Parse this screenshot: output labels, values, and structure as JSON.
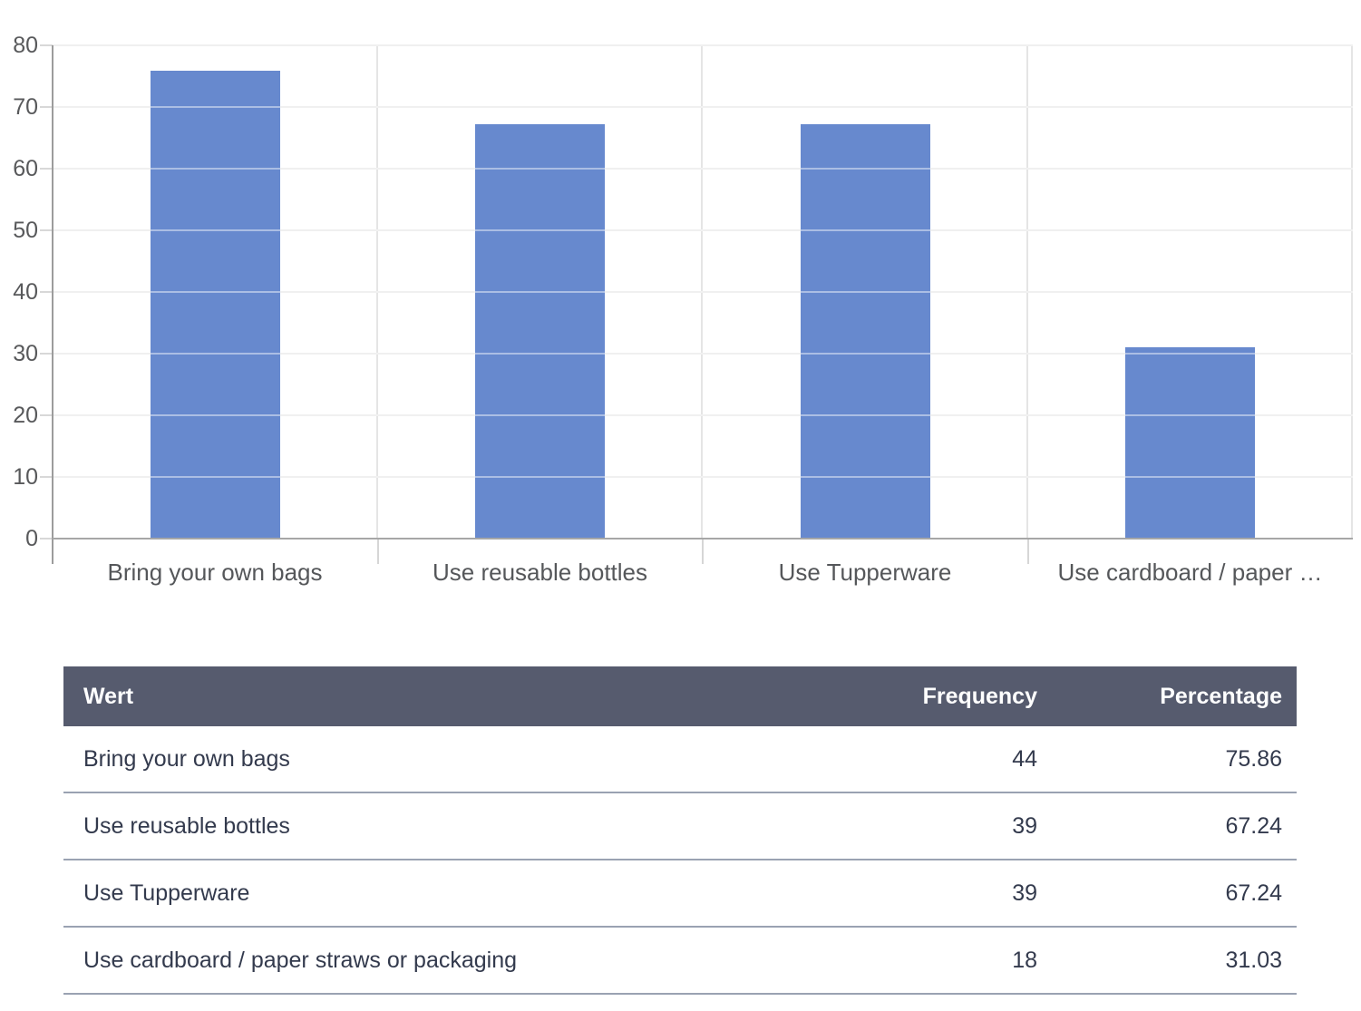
{
  "chart_data": {
    "type": "bar",
    "categories": [
      "Bring your own bags",
      "Use reusable bottles",
      "Use Tupperware",
      "Use cardboard / paper …"
    ],
    "values": [
      75.86,
      67.24,
      67.24,
      31.03
    ],
    "series_name": "Percentage",
    "title": "",
    "xlabel": "",
    "ylabel": "",
    "ylim": [
      0,
      80
    ],
    "ytick_step": 10,
    "yticks": [
      0,
      10,
      20,
      30,
      40,
      50,
      60,
      70,
      80
    ],
    "grid": true,
    "legend_position": "none",
    "bar_color": "#6789ce",
    "axis_text_color": "#58595b",
    "gridline_color": "#e3e3e3",
    "baseline_color": "#a7a7a7"
  },
  "table": {
    "headers": [
      "Wert",
      "Frequency",
      "Percentage"
    ],
    "header_bg": "#565b6e",
    "header_text_color": "#ffffff",
    "row_border_color": "#9aa2b2",
    "rows": [
      {
        "label": "Bring your own bags",
        "frequency": "44",
        "percentage": "75.86"
      },
      {
        "label": "Use reusable bottles",
        "frequency": "39",
        "percentage": "67.24"
      },
      {
        "label": "Use Tupperware",
        "frequency": "39",
        "percentage": "67.24"
      },
      {
        "label": "Use cardboard / paper straws or packaging",
        "frequency": "18",
        "percentage": "31.03"
      }
    ]
  }
}
